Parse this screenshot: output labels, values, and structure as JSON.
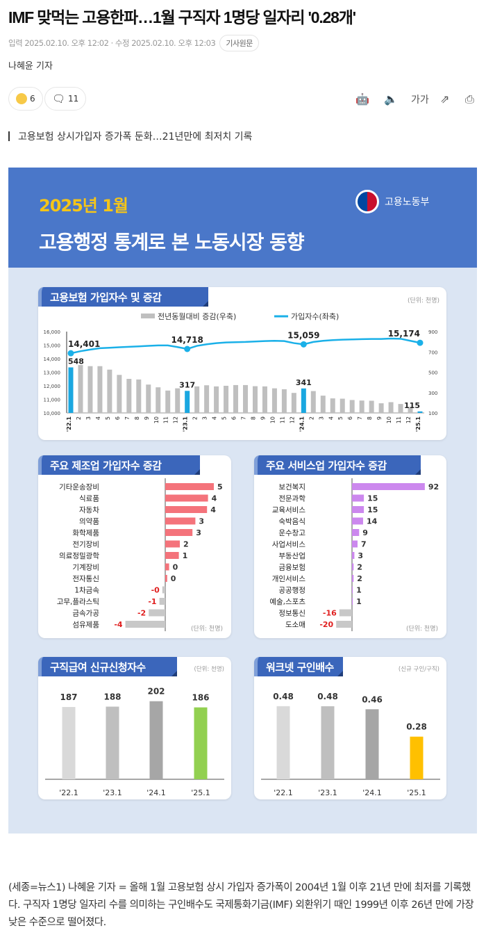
{
  "article": {
    "title": "IMF 맞먹는 고용한파…1월 구직자 1명당 일자리 '0.28개'",
    "meta": "입력 2025.02.10. 오후 12:02 · 수정 2025.02.10. 오후 12:03",
    "origin_label": "기사원문",
    "author": "나혜윤 기자",
    "reaction_count": "6",
    "comment_count": "11",
    "font_size_label": "가가",
    "subtitle": "고용보험 상시가입자 증가폭 둔화…21년만에 최저치 기록",
    "body": "(세종=뉴스1) 나혜윤 기자 = 올해 1월 고용보험 상시 가입자 증가폭이 2004년 1월 이후 21년 만에 최저를 기록했다. 구직자 1명당 일자리 수를 의미하는 구인배수도 국제통화기금(IMF) 외환위기 때인 1999년 이후 26년 만에 가장 낮은 수준으로 떨어졌다."
  },
  "infographic": {
    "year": "2025년 1월",
    "headline": "고용행정 통계로 본 노동시장 동향",
    "ministry": "고용노동부"
  },
  "chart_data": [
    {
      "type": "bar+line",
      "title": "고용보험 가입자수 및 증감",
      "unit": "(단위: 천명)",
      "legend": [
        "전년동월대비 증감(우축)",
        "가입자수(좌축)"
      ],
      "legend_placement": "top",
      "categories": [
        "'22.1",
        "2",
        "3",
        "4",
        "5",
        "6",
        "7",
        "8",
        "9",
        "10",
        "11",
        "12",
        "'23.1",
        "2",
        "3",
        "4",
        "5",
        "6",
        "7",
        "8",
        "9",
        "10",
        "11",
        "12",
        "'24.1",
        "2",
        "3",
        "4",
        "5",
        "6",
        "7",
        "8",
        "9",
        "10",
        "11",
        "12",
        "'25.1"
      ],
      "ylim_left": [
        10000,
        16000
      ],
      "yticks_left": [
        "16,000",
        "15,000",
        "14,000",
        "13,000",
        "12,000",
        "11,000",
        "10,000"
      ],
      "ylim_right": [
        100,
        900
      ],
      "yticks_right": [
        "900",
        "700",
        "500",
        "300",
        "100"
      ],
      "series": [
        {
          "name": "전년동월대비 증감(우축)",
          "type": "bar",
          "axis": "right",
          "values": [
            548,
            571,
            560,
            560,
            526,
            474,
            435,
            429,
            379,
            352,
            320,
            342,
            317,
            361,
            372,
            361,
            367,
            374,
            374,
            363,
            361,
            342,
            333,
            297,
            341,
            315,
            270,
            243,
            240,
            227,
            222,
            220,
            195,
            206,
            188,
            159,
            115
          ]
        },
        {
          "name": "가입자수(좌축)",
          "type": "line",
          "axis": "left",
          "values": [
            14401,
            14555,
            14674,
            14776,
            14810,
            14844,
            14878,
            14912,
            14946,
            14980,
            14980,
            14860,
            14718,
            14946,
            15065,
            15150,
            15200,
            15218,
            15235,
            15270,
            15300,
            15320,
            15300,
            15150,
            15059,
            15235,
            15320,
            15370,
            15405,
            15420,
            15440,
            15455,
            15455,
            15490,
            15470,
            15320,
            15174
          ]
        }
      ],
      "highlight_indices": [
        0,
        12,
        24,
        36
      ],
      "line_labels": [
        "14,401",
        "14,718",
        "15,059",
        "15,174"
      ],
      "bar_labels": [
        "548",
        "317",
        "341",
        "115"
      ],
      "colors": {
        "bar": "#bfbfbf",
        "highlight_bar": "#1aa7e0",
        "line": "#1ab0e8"
      }
    },
    {
      "type": "bar-horizontal",
      "title": "주요 제조업 가입자수 증감",
      "unit": "(단위: 천명)",
      "categories": [
        "기타운송장비",
        "식료품",
        "자동차",
        "의약품",
        "화학제품",
        "전기장비",
        "의료정밀광학",
        "기계장비",
        "전자통신",
        "1차금속",
        "고무,플라스틱",
        "금속가공",
        "섬유제품"
      ],
      "values": [
        5.0,
        4.4,
        4.3,
        3.1,
        2.8,
        1.5,
        1.4,
        0.4,
        0.2,
        -0.3,
        -0.6,
        -1.7,
        -4.1
      ],
      "labels": [
        "5",
        "4",
        "4",
        "3",
        "3",
        "2",
        "1",
        "0",
        "0",
        "-0",
        "-1",
        "-2",
        "-4"
      ],
      "colors": {
        "positive": "#f4737b",
        "negative": "#c8c8c8",
        "negative_label": "#e02020"
      }
    },
    {
      "type": "bar-horizontal",
      "title": "주요 서비스업 가입자수 증감",
      "unit": "(단위: 천명)",
      "categories": [
        "보건복지",
        "전문과학",
        "교육서비스",
        "숙박음식",
        "운수창고",
        "사업서비스",
        "부동산업",
        "금융보험",
        "개인서비스",
        "공공행정",
        "예술,스포츠",
        "정보통신",
        "도소매"
      ],
      "values": [
        92,
        15,
        15,
        14,
        9,
        7,
        3,
        2,
        2,
        1,
        1,
        -16,
        -20
      ],
      "labels": [
        "92",
        "15",
        "15",
        "14",
        "9",
        "7",
        "3",
        "2",
        "2",
        "1",
        "1",
        "-16",
        "-20"
      ],
      "colors": {
        "positive": "#cc88ee",
        "negative": "#c8c8c8",
        "negative_label": "#e02020"
      }
    },
    {
      "type": "bar",
      "title": "구직급여 신규신청자수",
      "unit": "(단위: 천명)",
      "categories": [
        "'22.1",
        "'23.1",
        "'24.1",
        "'25.1"
      ],
      "values": [
        187,
        188,
        202,
        186
      ],
      "labels": [
        "187",
        "188",
        "202",
        "186"
      ],
      "colors": [
        "#d9d9d9",
        "#bfbfbf",
        "#a6a6a6",
        "#92d050"
      ]
    },
    {
      "type": "bar",
      "title": "워크넷 구인배수",
      "unit": "(신규 구인/구직)",
      "categories": [
        "'22.1",
        "'23.1",
        "'24.1",
        "'25.1"
      ],
      "values": [
        0.48,
        0.48,
        0.46,
        0.28
      ],
      "labels": [
        "0.48",
        "0.48",
        "0.46",
        "0.28"
      ],
      "colors": [
        "#d9d9d9",
        "#bfbfbf",
        "#a6a6a6",
        "#ffc000"
      ]
    }
  ]
}
